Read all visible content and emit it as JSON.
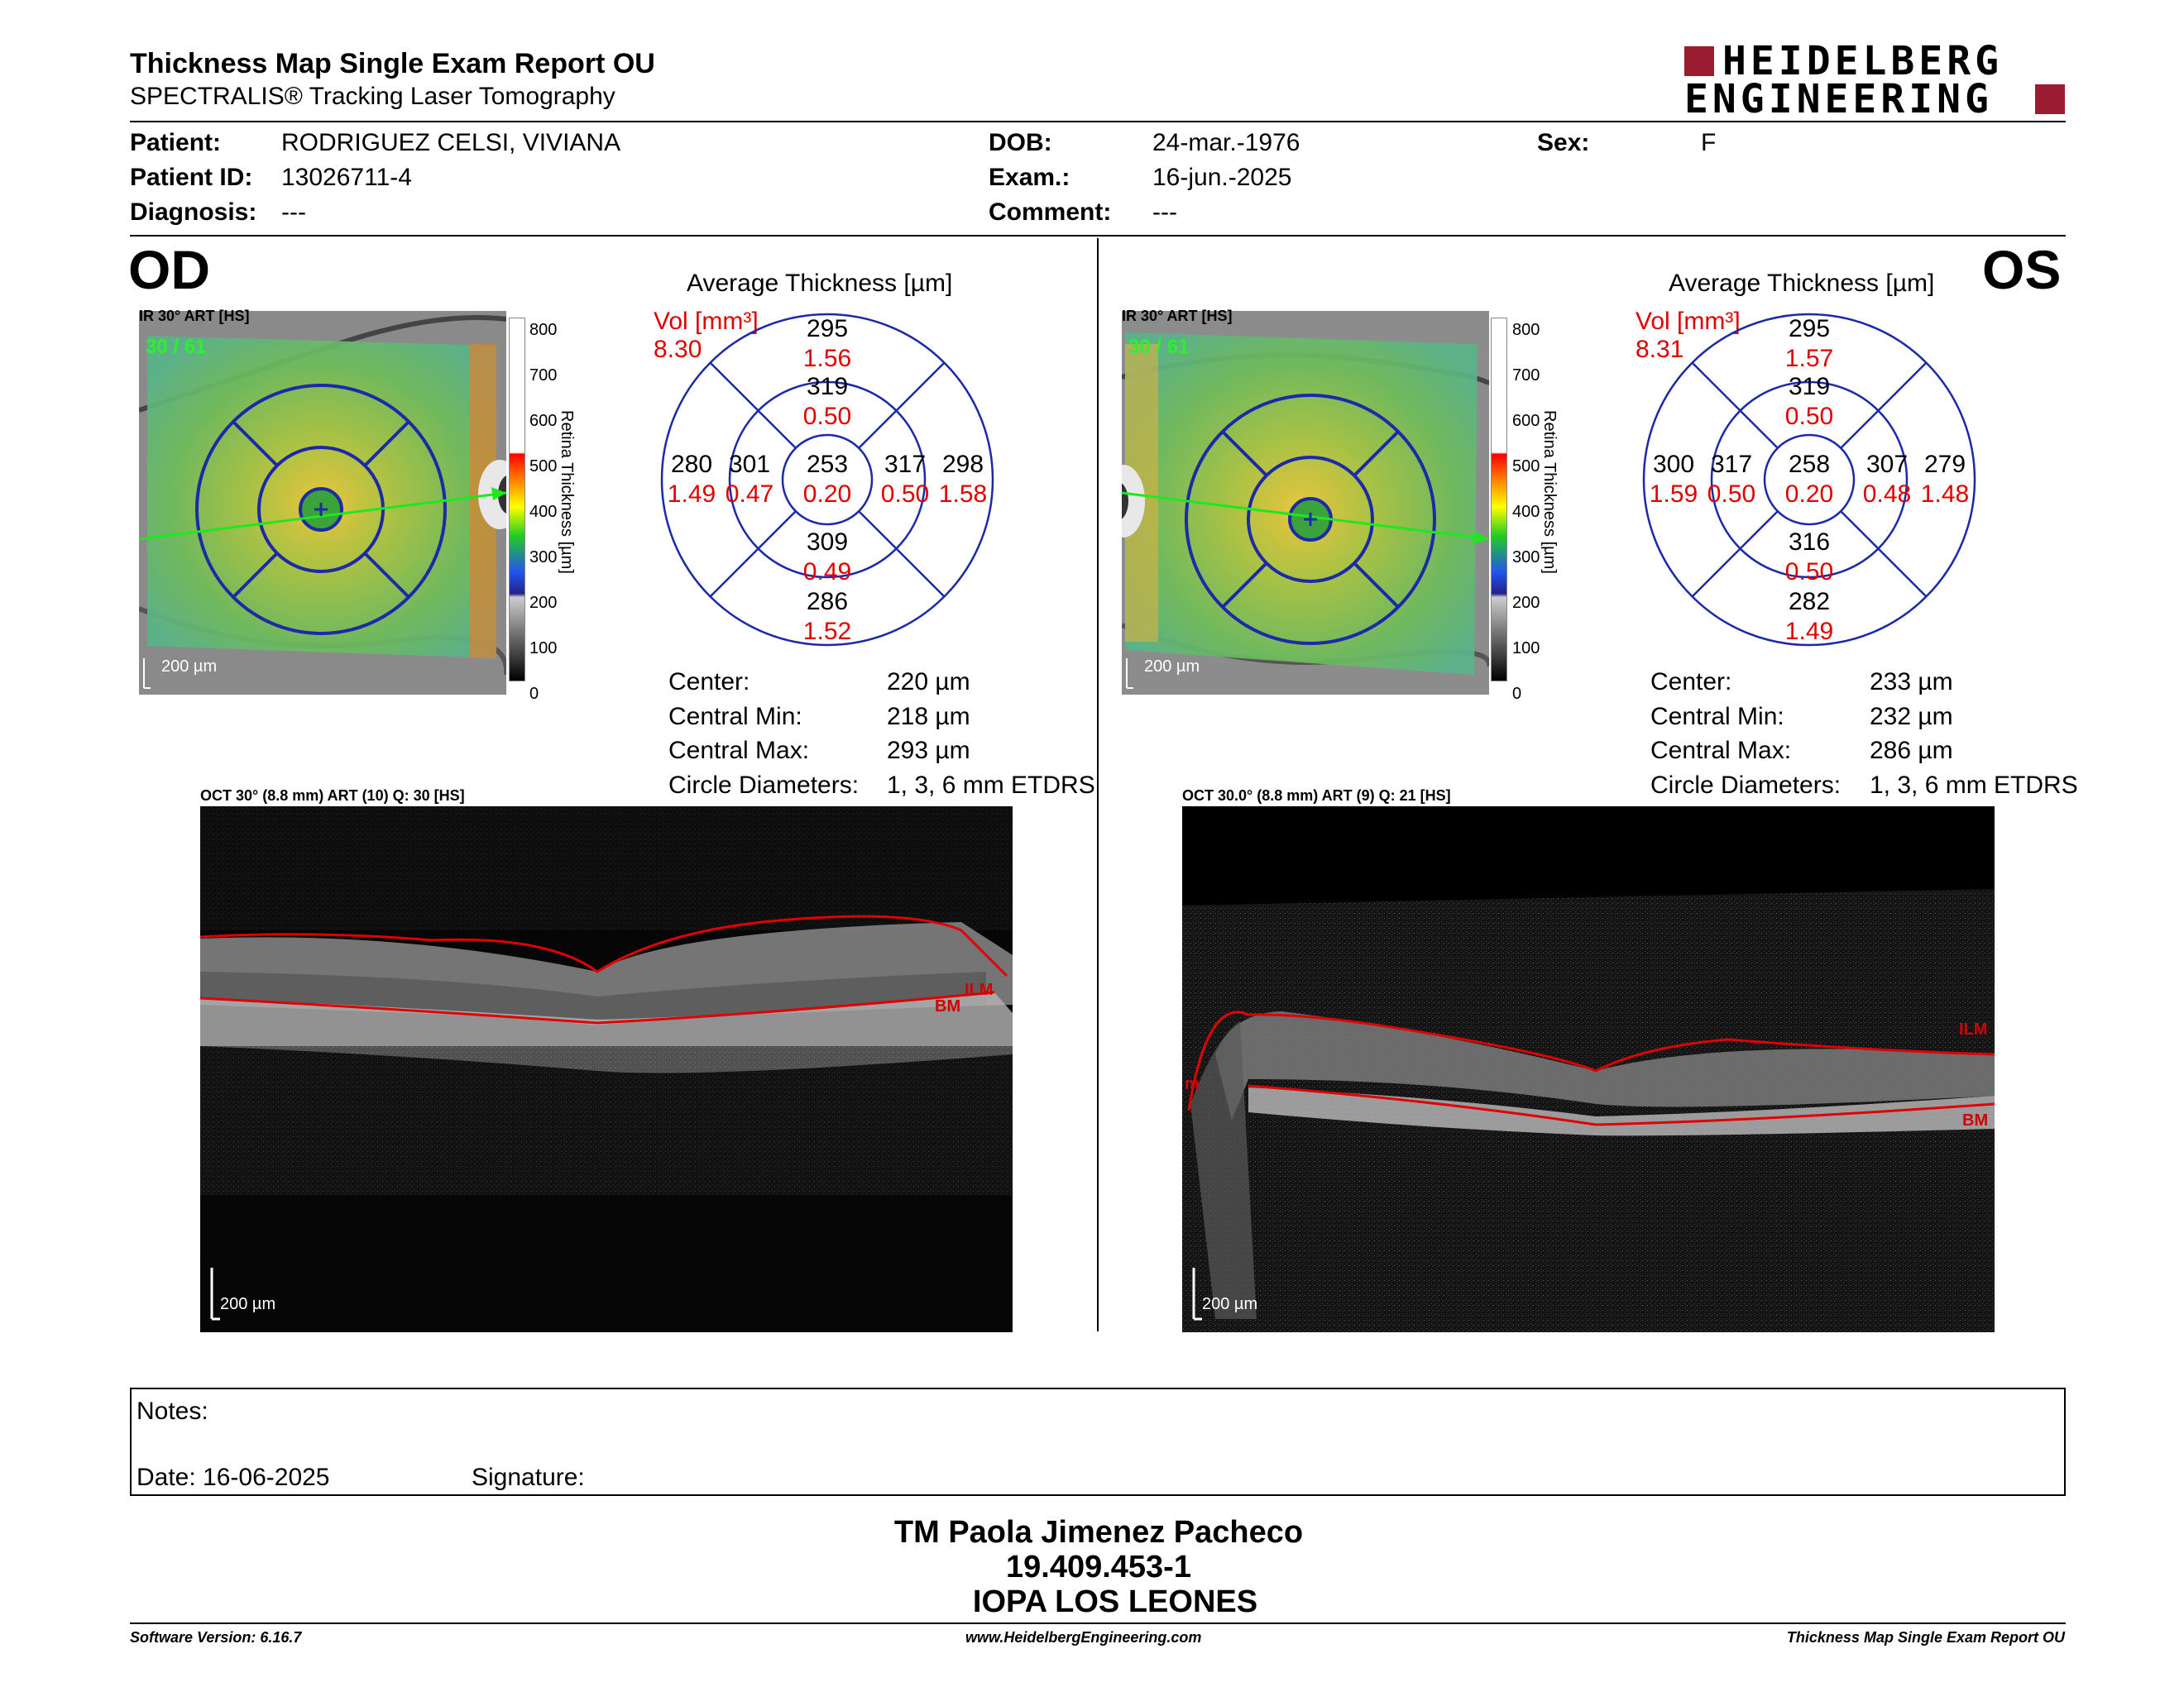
{
  "header": {
    "title": "Thickness Map Single Exam Report OU",
    "subtitle": "SPECTRALIS® Tracking Laser Tomography",
    "logo_line1": "HEIDELBERG",
    "logo_line2": "ENGINEERING"
  },
  "patient": {
    "patient_label": "Patient:",
    "patient": "RODRIGUEZ CELSI, VIVIANA",
    "id_label": "Patient ID:",
    "id": "13026711-4",
    "diag_label": "Diagnosis:",
    "diagnosis": "---",
    "dob_label": "DOB:",
    "dob": "24-mar.-1976",
    "exam_label": "Exam.:",
    "exam": "16-jun.-2025",
    "comment_label": "Comment:",
    "comment": "---",
    "sex_label": "Sex:",
    "sex": "F"
  },
  "colorbar": {
    "ticks": [
      "800",
      "700",
      "600",
      "500",
      "400",
      "300",
      "200",
      "100",
      "0"
    ],
    "label": "Retina Thickness [µm]"
  },
  "od": {
    "eye": "OD",
    "ir_caption": "IR 30° ART [HS]",
    "ir_count": "30 / 61",
    "scale": "200 µm",
    "avg_title": "Average Thickness [µm]",
    "vol_label": "Vol [mm³]",
    "vol": "8.30",
    "grid": {
      "center": {
        "t": "253",
        "v": "0.20"
      },
      "inner_top": {
        "t": "319",
        "v": "0.50"
      },
      "inner_bottom": {
        "t": "309",
        "v": "0.49"
      },
      "inner_left": {
        "t": "301",
        "v": "0.47"
      },
      "inner_right": {
        "t": "317",
        "v": "0.50"
      },
      "outer_top": {
        "t": "295",
        "v": "1.56"
      },
      "outer_bottom": {
        "t": "286",
        "v": "1.52"
      },
      "outer_left": {
        "t": "280",
        "v": "1.49"
      },
      "outer_right": {
        "t": "298",
        "v": "1.58"
      }
    },
    "stats": [
      {
        "label": "Center:",
        "value": "220 µm"
      },
      {
        "label": "Central Min:",
        "value": "218 µm"
      },
      {
        "label": "Central Max:",
        "value": "293 µm"
      },
      {
        "label": "Circle Diameters:",
        "value": "1, 3, 6 mm ETDRS"
      }
    ],
    "oct_caption": "OCT 30° (8.8 mm) ART (10) Q: 30 [HS]",
    "oct_scale": "200 µm",
    "ilm": "ILM",
    "bm": "BM"
  },
  "os": {
    "eye": "OS",
    "ir_caption": "IR 30° ART [HS]",
    "ir_count": "30 / 61",
    "scale": "200 µm",
    "avg_title": "Average Thickness [µm]",
    "vol_label": "Vol [mm³]",
    "vol": "8.31",
    "grid": {
      "center": {
        "t": "258",
        "v": "0.20"
      },
      "inner_top": {
        "t": "319",
        "v": "0.50"
      },
      "inner_bottom": {
        "t": "316",
        "v": "0.50"
      },
      "inner_left": {
        "t": "317",
        "v": "0.50"
      },
      "inner_right": {
        "t": "307",
        "v": "0.48"
      },
      "outer_top": {
        "t": "295",
        "v": "1.57"
      },
      "outer_bottom": {
        "t": "282",
        "v": "1.49"
      },
      "outer_left": {
        "t": "300",
        "v": "1.59"
      },
      "outer_right": {
        "t": "279",
        "v": "1.48"
      }
    },
    "stats": [
      {
        "label": "Center:",
        "value": "233 µm"
      },
      {
        "label": "Central Min:",
        "value": "232 µm"
      },
      {
        "label": "Central Max:",
        "value": "286 µm"
      },
      {
        "label": "Circle Diameters:",
        "value": "1, 3, 6 mm ETDRS"
      }
    ],
    "oct_caption": "OCT 30.0° (8.8 mm) ART (9) Q: 21 [HS]",
    "oct_scale": "200 µm",
    "ilm": "ILM",
    "bm": "BM",
    "m_label": "m"
  },
  "notes": {
    "label": "Notes:",
    "date": "Date: 16-06-2025",
    "signature": "Signature:"
  },
  "signer": {
    "name": "TM Paola Jimenez Pacheco",
    "rut": "19.409.453-1",
    "org": "IOPA LOS LEONES"
  },
  "footer": {
    "left": "Software Version: 6.16.7",
    "center": "www.HeidelbergEngineering.com",
    "right": "Thickness Map Single Exam Report OU"
  }
}
